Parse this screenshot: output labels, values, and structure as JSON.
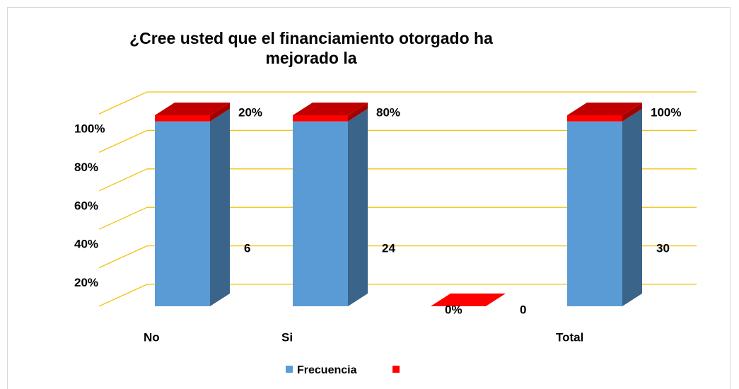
{
  "chart_data": {
    "type": "bar3d_stacked100",
    "title": "¿Cree usted que el financiamiento otorgado ha mejorado la",
    "categories": [
      "No",
      "Si",
      null,
      "Total"
    ],
    "series": [
      {
        "name": "Frecuencia",
        "color": "#5b9bd5",
        "values": [
          6,
          24,
          0,
          30
        ]
      },
      {
        "color": "#ff0000",
        "values": [
          0.2,
          0.8,
          0,
          1
        ],
        "value_labels": [
          "20%",
          "80%",
          "0%",
          "100%"
        ]
      }
    ],
    "ylim": [
      0,
      100
    ],
    "yticks": [
      {
        "value": 20,
        "label": "20%"
      },
      {
        "value": 40,
        "label": "40%"
      },
      {
        "value": 60,
        "label": "60%"
      },
      {
        "value": 80,
        "label": "80%"
      },
      {
        "value": 100,
        "label": "100%"
      }
    ],
    "grid": true,
    "legend": "bottom"
  }
}
